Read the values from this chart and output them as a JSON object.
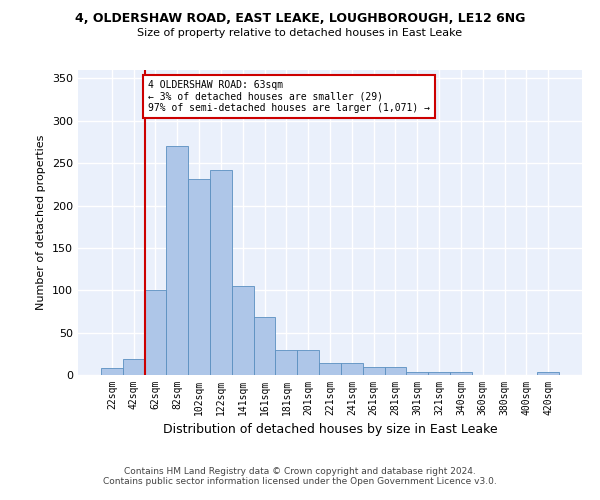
{
  "title1": "4, OLDERSHAW ROAD, EAST LEAKE, LOUGHBOROUGH, LE12 6NG",
  "title2": "Size of property relative to detached houses in East Leake",
  "xlabel": "Distribution of detached houses by size in East Leake",
  "ylabel": "Number of detached properties",
  "bin_labels": [
    "22sqm",
    "42sqm",
    "62sqm",
    "82sqm",
    "102sqm",
    "122sqm",
    "141sqm",
    "161sqm",
    "181sqm",
    "201sqm",
    "221sqm",
    "241sqm",
    "261sqm",
    "281sqm",
    "301sqm",
    "321sqm",
    "340sqm",
    "360sqm",
    "380sqm",
    "400sqm",
    "420sqm"
  ],
  "bar_heights": [
    8,
    19,
    100,
    270,
    231,
    242,
    105,
    68,
    30,
    30,
    14,
    14,
    10,
    10,
    4,
    3,
    3,
    0,
    0,
    0,
    3
  ],
  "bar_color": "#aec6e8",
  "bar_edge_color": "#5a8fc0",
  "background_color": "#eaf0fb",
  "grid_color": "#ffffff",
  "vline_color": "#cc0000",
  "annotation_text": "4 OLDERSHAW ROAD: 63sqm\n← 3% of detached houses are smaller (29)\n97% of semi-detached houses are larger (1,071) →",
  "annotation_box_color": "#cc0000",
  "footnote1": "Contains HM Land Registry data © Crown copyright and database right 2024.",
  "footnote2": "Contains public sector information licensed under the Open Government Licence v3.0.",
  "ylim": [
    0,
    360
  ],
  "yticks": [
    0,
    50,
    100,
    150,
    200,
    250,
    300,
    350
  ]
}
